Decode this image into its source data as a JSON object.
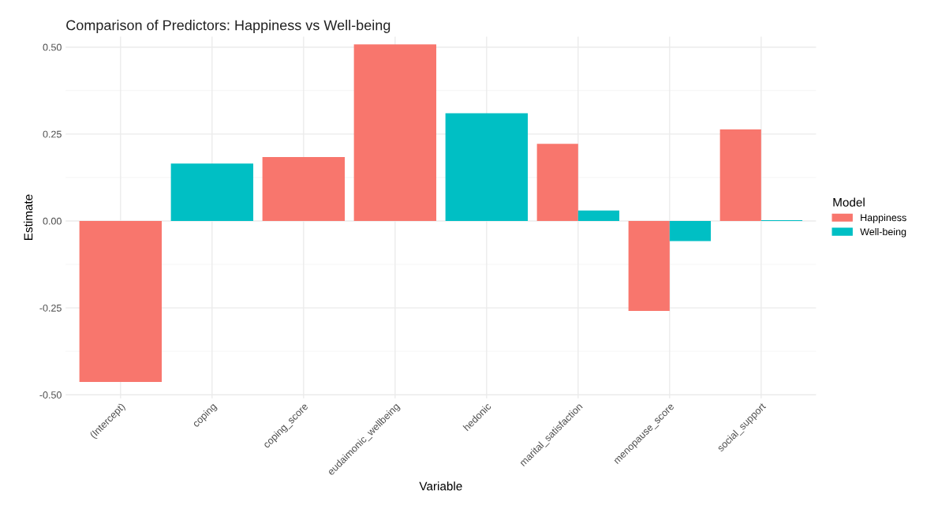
{
  "chart_data": {
    "type": "bar",
    "title": "Comparison of Predictors: Happiness vs Well-being",
    "xlabel": "Variable",
    "ylabel": "Estimate",
    "legend_title": "Model",
    "legend": "right",
    "categories": [
      "(Intercept)",
      "coping",
      "coping_score",
      "eudaimonic_wellbeing",
      "hedonic",
      "marital_satisfaction",
      "menopause_score",
      "social_support"
    ],
    "series": [
      {
        "name": "Happiness",
        "color": "#f8766d",
        "values": [
          -0.463,
          null,
          0.184,
          0.508,
          null,
          0.222,
          -0.259,
          0.263
        ]
      },
      {
        "name": "Well-being",
        "color": "#00bfc4",
        "values": [
          null,
          0.165,
          null,
          null,
          0.31,
          0.03,
          -0.058,
          0.002
        ]
      }
    ],
    "ylim": [
      -0.51,
      0.53
    ],
    "yticks": [
      {
        "value": 0.5,
        "label": "0.50"
      },
      {
        "value": 0.25,
        "label": "0.25"
      },
      {
        "value": 0,
        "label": "0.00"
      },
      {
        "value": -0.25,
        "label": "-0.25"
      },
      {
        "value": -0.5,
        "label": "-0.50"
      }
    ],
    "grid": true
  }
}
